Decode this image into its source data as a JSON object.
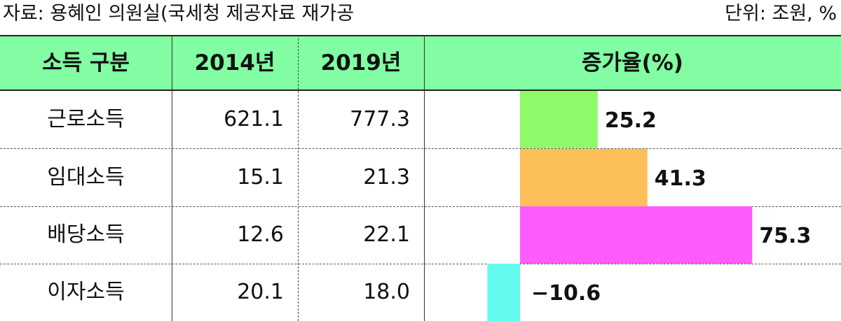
{
  "source_note": "자료: 용혜인 의원실(국세청 제공자료 재가공",
  "unit_note": "단위: 조원, %",
  "headers": {
    "category": "소득 구분",
    "y2014": "2014년",
    "y2019": "2019년",
    "growth": "증가율(%)"
  },
  "colors": {
    "header_bg": "#82fda3",
    "bars": [
      "#8efa6a",
      "#fdbf58",
      "#fd5cfd",
      "#64fbef"
    ]
  },
  "chart_data": {
    "type": "bar",
    "orientation": "horizontal",
    "categories": [
      "근로소득",
      "임대소득",
      "배당소득",
      "이자소득"
    ],
    "columns": [
      "2014년",
      "2019년"
    ],
    "table_values": {
      "2014년": [
        "621.1",
        "15.1",
        "12.6",
        "20.1"
      ],
      "2019년": [
        "777.3",
        "21.3",
        "22.1",
        "18.0"
      ]
    },
    "values": [
      25.2,
      41.3,
      75.3,
      -10.6
    ],
    "value_labels": [
      "25.2",
      "41.3",
      "75.3",
      "−10.6"
    ],
    "title": "",
    "xlabel": "증가율(%)",
    "ylabel": "",
    "xlim": [
      -12,
      80
    ],
    "grid": false
  }
}
